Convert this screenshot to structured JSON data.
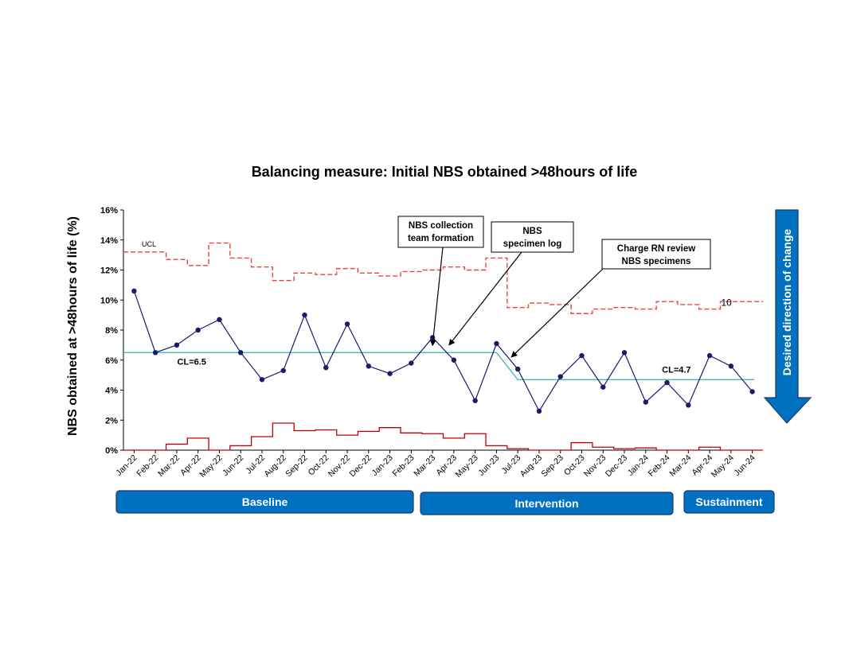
{
  "chart_data": {
    "type": "line",
    "title": "Balancing measure: Initial NBS obtained >48hours of life",
    "ylabel": "NBS obtained at >48hours of life (%)",
    "ylim": [
      0,
      16
    ],
    "yticks": [
      "0%",
      "2%",
      "4%",
      "6%",
      "8%",
      "10%",
      "12%",
      "14%",
      "16%"
    ],
    "categories": [
      "Jan-22",
      "Feb-22",
      "Mar-22",
      "Apr-22",
      "May-22",
      "Jun-22",
      "Jul-22",
      "Aug-22",
      "Sep-22",
      "Oct-22",
      "Nov-22",
      "Dec-22",
      "Jan-23",
      "Feb-23",
      "Mar-23",
      "Apr-23",
      "May-23",
      "Jun-23",
      "Jul-23",
      "Aug-23",
      "Sep-23",
      "Oct-23",
      "Nov-23",
      "Dec-23",
      "Jan-24",
      "Feb-24",
      "Mar-24",
      "Apr-24",
      "May-24",
      "Jun-24"
    ],
    "series": [
      {
        "values": [
          10.6,
          6.5,
          7.0,
          8.0,
          8.7,
          6.5,
          4.7,
          5.3,
          9.0,
          5.5,
          8.4,
          5.6,
          5.1,
          5.8,
          7.5,
          6.0,
          3.3,
          7.1,
          5.4,
          2.6,
          4.9,
          6.3,
          4.2,
          6.5,
          3.2,
          4.5,
          3.0,
          6.3,
          5.6,
          3.9
        ],
        "color": "#1a1a6e"
      },
      {
        "name": "UCL",
        "values": [
          13.2,
          13.2,
          12.7,
          12.3,
          13.8,
          12.8,
          12.2,
          11.3,
          11.8,
          11.7,
          12.1,
          11.8,
          11.6,
          11.9,
          12.0,
          12.2,
          12.0,
          12.8,
          9.5,
          9.8,
          9.7,
          9.1,
          9.4,
          9.5,
          9.4,
          9.9,
          9.7,
          9.4,
          9.9,
          9.9
        ],
        "color": "#e8463a",
        "style": "dashed-step"
      },
      {
        "values": [
          0.0,
          0.0,
          0.4,
          0.8,
          0.0,
          0.3,
          0.9,
          1.8,
          1.3,
          1.35,
          1.0,
          1.25,
          1.5,
          1.15,
          1.1,
          0.8,
          1.1,
          0.3,
          0.1,
          0.0,
          0.0,
          0.5,
          0.2,
          0.1,
          0.15,
          0.0,
          0.0,
          0.2,
          0.0,
          0.0
        ],
        "color": "#c00000",
        "style": "step"
      },
      {
        "values": [
          6.5,
          6.5,
          6.5,
          6.5,
          6.5,
          6.5,
          6.5,
          6.5,
          6.5,
          6.5,
          6.5,
          6.5,
          6.5,
          6.5,
          6.5,
          6.5,
          6.5,
          6.5,
          4.7,
          4.7,
          4.7,
          4.7,
          4.7,
          4.7,
          4.7,
          4.7,
          4.7,
          4.7,
          4.7,
          4.7
        ],
        "color": "#4ab8b8"
      }
    ],
    "labels": {
      "ucl": "UCL",
      "cl_baseline": "CL=6.5",
      "cl_intervention": "CL=4.7",
      "ucl_marker": "10"
    },
    "annotations": [
      {
        "lines": [
          "NBS collection",
          "team formation"
        ],
        "target_index": 14,
        "target_value": 7.4
      },
      {
        "lines": [
          "NBS",
          "specimen log"
        ],
        "target_index": 15,
        "target_value": 7.0
      },
      {
        "lines": [
          "Charge RN review",
          "NBS specimens"
        ],
        "target_index": 18,
        "target_value": 6.2
      }
    ],
    "phases": [
      {
        "label": "Baseline",
        "start": 0,
        "end": 13
      },
      {
        "label": "Intervention",
        "start": 14,
        "end": 27
      },
      {
        "label": "Sustainment",
        "start": 28,
        "end": 29
      }
    ],
    "direction_label": "Desired direction of change",
    "grid": false,
    "colors": {
      "data": "#1a1a6e",
      "ucl": "#e8463a",
      "lcl": "#c00000",
      "cl": "#4ab8b8",
      "phase_fill": "#0070c0",
      "phase_border": "#1f3864"
    }
  }
}
